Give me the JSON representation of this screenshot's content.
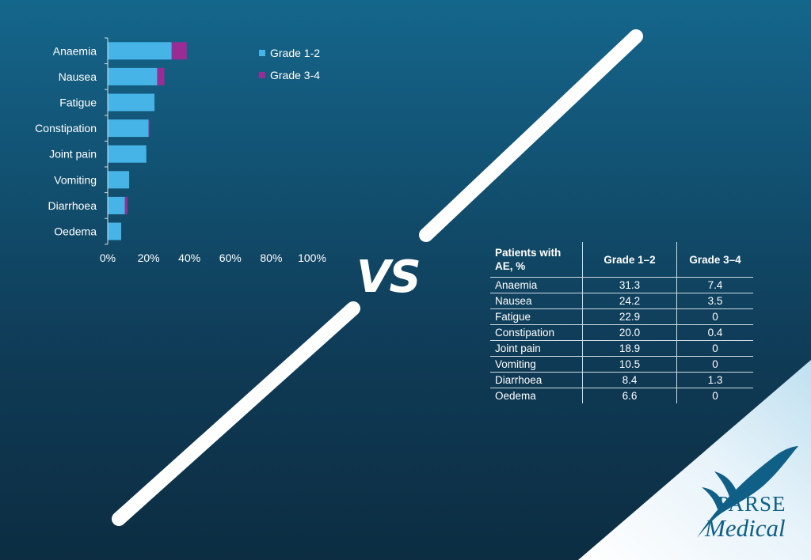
{
  "chart_data": {
    "type": "bar",
    "orientation": "horizontal",
    "stacked": true,
    "categories": [
      "Anaemia",
      "Nausea",
      "Fatigue",
      "Constipation",
      "Joint pain",
      "Vomiting",
      "Diarrhoea",
      "Oedema"
    ],
    "series": [
      {
        "name": "Grade 1-2",
        "color": "#46b4e6",
        "values": [
          31.3,
          24.2,
          22.9,
          20.0,
          18.9,
          10.5,
          8.4,
          6.6
        ]
      },
      {
        "name": "Grade 3-4",
        "color": "#9b2c96",
        "values": [
          7.4,
          3.5,
          0,
          0.4,
          0,
          0,
          1.3,
          0
        ]
      }
    ],
    "xlim": [
      0,
      100
    ],
    "xticks": [
      "0%",
      "20%",
      "40%",
      "60%",
      "80%",
      "100%"
    ],
    "grid": false,
    "legend_position": "right"
  },
  "vs_text": "VS",
  "table": {
    "header": [
      "Patients with AE, %",
      "Grade 1–2",
      "Grade 3–4"
    ],
    "rows": [
      [
        "Anaemia",
        "31.3",
        "7.4"
      ],
      [
        "Nausea",
        "24.2",
        "3.5"
      ],
      [
        "Fatigue",
        "22.9",
        "0"
      ],
      [
        "Constipation",
        "20.0",
        "0.4"
      ],
      [
        "Joint pain",
        "18.9",
        "0"
      ],
      [
        "Vomiting",
        "10.5",
        "0"
      ],
      [
        "Diarrhoea",
        "8.4",
        "1.3"
      ],
      [
        "Oedema",
        "6.6",
        "0"
      ]
    ]
  },
  "logo": {
    "line1": "PARSE",
    "line2": "Medical",
    "color": "#0f5f86"
  }
}
